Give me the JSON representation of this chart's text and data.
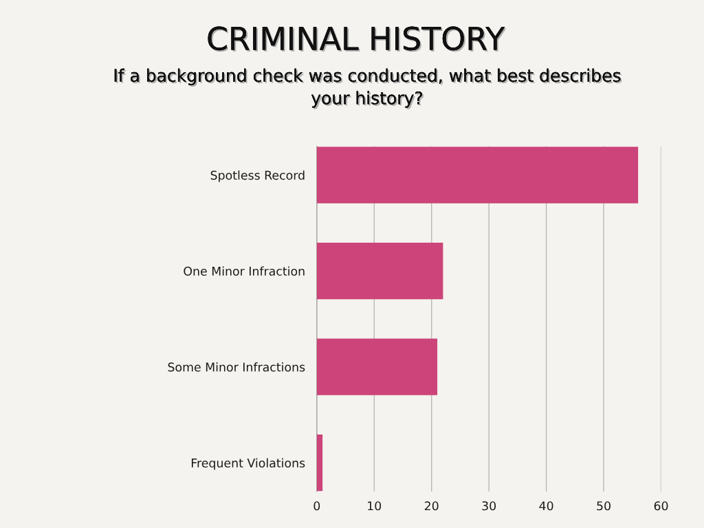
{
  "chart_data": {
    "type": "bar",
    "orientation": "horizontal",
    "title": "CRIMINAL HISTORY",
    "subtitle": "If a background check was conducted, what best describes your history?",
    "categories": [
      "Spotless Record",
      "One Minor Infraction",
      "Some Minor Infractions",
      "Frequent Violations"
    ],
    "values": [
      56,
      22,
      21,
      1
    ],
    "color": "#cc4479",
    "xlim": [
      0,
      60
    ],
    "xticks": [
      0,
      10,
      20,
      30,
      40,
      50,
      60
    ],
    "grid": "x"
  }
}
